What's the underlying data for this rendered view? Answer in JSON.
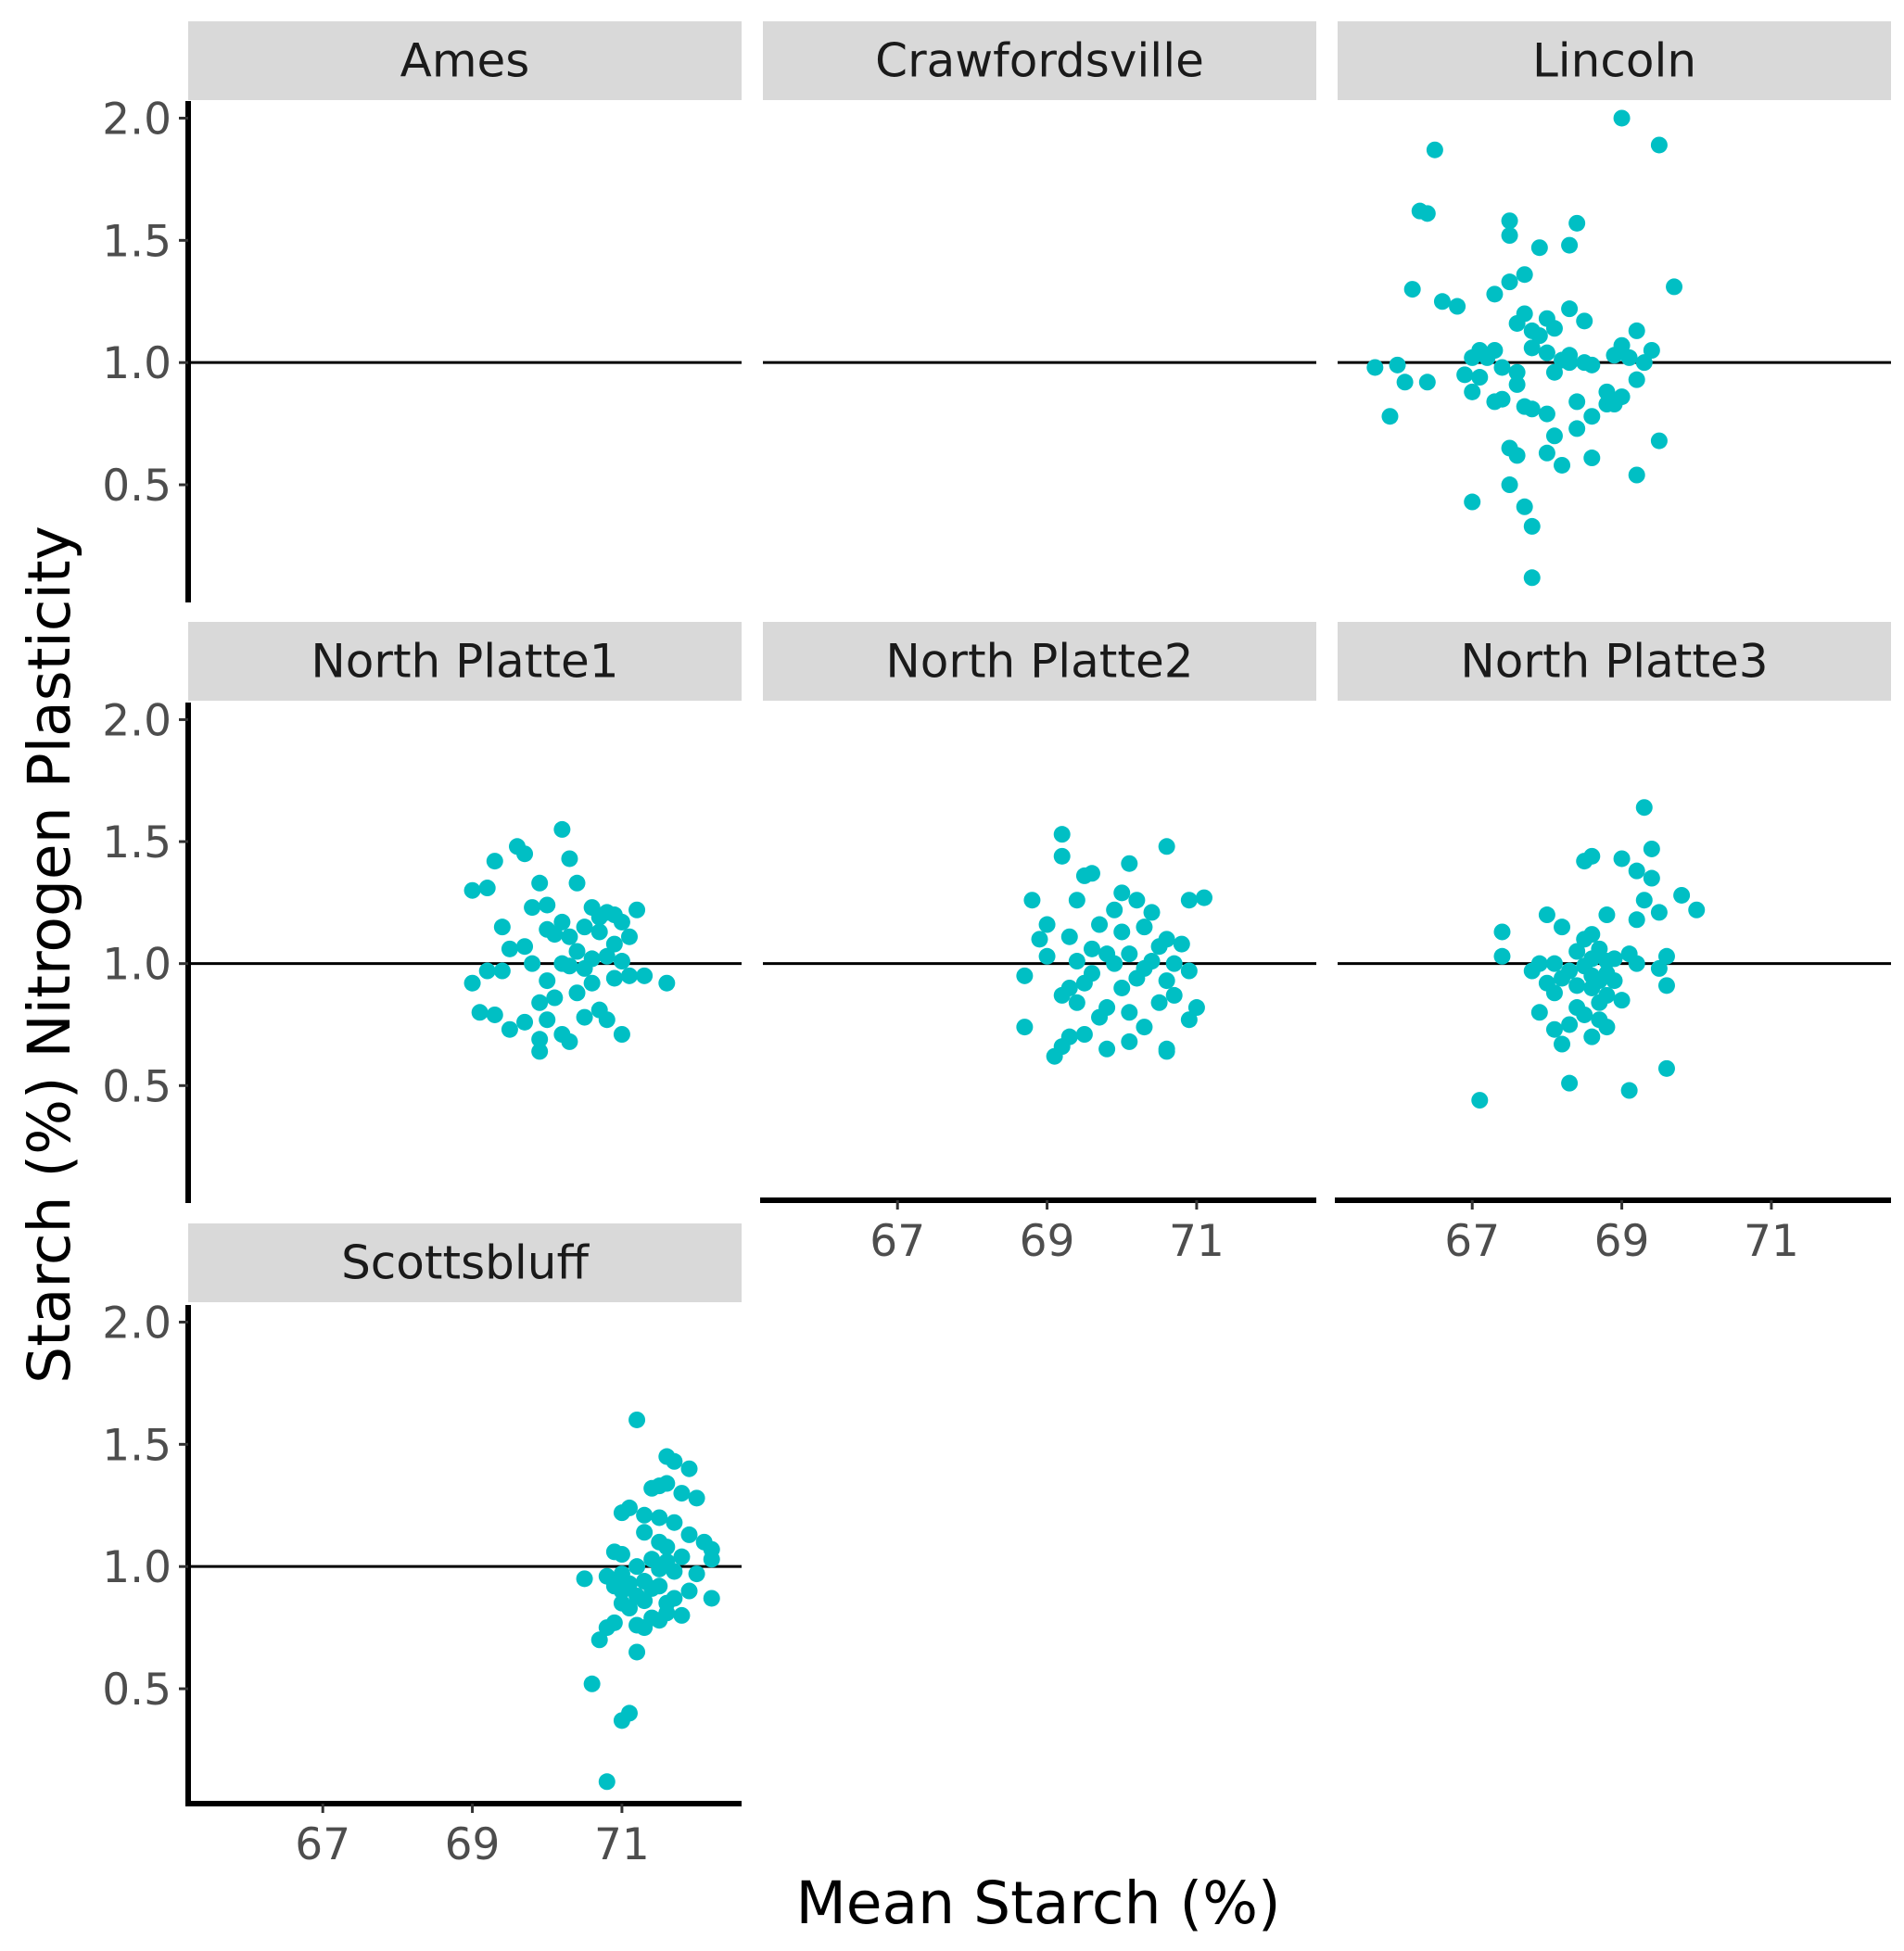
{
  "chart_data": {
    "type": "scatter",
    "title": "",
    "xlabel": "Mean Starch (%)",
    "ylabel": "Starch (%) Nitrogen Plasticity",
    "xlim": [
      65.2,
      72.6
    ],
    "ylim": [
      0.03,
      2.07
    ],
    "x_ticks": [
      67,
      69,
      71
    ],
    "y_ticks": [
      0.5,
      1.0,
      1.5,
      2.0
    ],
    "y_tick_labels": [
      "0.5",
      "1.0",
      "1.5",
      "2.0"
    ],
    "reference_line_y": 1.0,
    "point_color": "#00BFC4",
    "strip_color": "#D9D9D9",
    "grid": false,
    "legend": "none",
    "panels": [
      {
        "name": "Ames",
        "x": [],
        "y": []
      },
      {
        "name": "Crawfordsville",
        "x": [],
        "y": []
      },
      {
        "name": "Lincoln",
        "x": [
          69.0,
          69.5,
          66.5,
          66.3,
          66.4,
          67.5,
          68.4,
          67.5,
          68.3,
          67.9,
          67.7,
          66.2,
          69.7,
          67.3,
          66.6,
          66.8,
          67.5,
          67.7,
          67.6,
          68.3,
          68.0,
          67.8,
          68.5,
          67.9,
          68.1,
          69.2,
          69.0,
          67.3,
          68.0,
          67.1,
          67.2,
          67.8,
          68.3,
          68.5,
          68.2,
          68.9,
          69.4,
          69.1,
          66.0,
          67.0,
          67.4,
          68.3,
          67.6,
          66.9,
          68.6,
          69.3,
          65.7,
          66.1,
          67.1,
          67.6,
          68.1,
          69.2,
          68.8,
          69.0,
          66.4,
          68.4,
          67.0,
          67.4,
          67.7,
          67.3,
          68.8,
          68.9,
          67.8,
          68.6,
          68.0,
          65.9,
          68.4,
          67.5,
          68.1,
          68.0,
          69.5,
          67.6,
          68.6,
          68.2,
          67.5,
          69.2,
          67.0,
          67.7,
          67.8
        ],
        "y": [
          2.0,
          1.89,
          1.87,
          1.62,
          1.61,
          1.58,
          1.57,
          1.52,
          1.48,
          1.47,
          1.36,
          1.3,
          1.31,
          1.28,
          1.25,
          1.23,
          1.33,
          1.2,
          1.16,
          1.22,
          1.18,
          1.13,
          1.17,
          1.11,
          1.14,
          1.13,
          1.07,
          1.05,
          1.04,
          1.05,
          1.02,
          1.06,
          1.03,
          1.0,
          1.01,
          1.03,
          1.05,
          1.02,
          0.99,
          1.02,
          0.98,
          1.0,
          0.96,
          0.95,
          0.99,
          1.0,
          0.98,
          0.92,
          0.94,
          0.91,
          0.96,
          0.93,
          0.88,
          0.86,
          0.92,
          0.84,
          0.88,
          0.85,
          0.82,
          0.84,
          0.83,
          0.83,
          0.81,
          0.78,
          0.79,
          0.78,
          0.73,
          0.65,
          0.7,
          0.63,
          0.68,
          0.62,
          0.61,
          0.58,
          0.5,
          0.54,
          0.43,
          0.41,
          0.33
        ],
        "y_extra": [
          0.12
        ]
      },
      {
        "name": "North Platte1",
        "x": [
          70.2,
          69.6,
          70.3,
          69.3,
          69.7,
          69.0,
          69.2,
          69.9,
          70.4,
          70.8,
          70.6,
          71.2,
          70.9,
          70.0,
          69.4,
          69.8,
          70.2,
          70.5,
          70.7,
          71.0,
          70.3,
          69.5,
          70.1,
          70.7,
          70.9,
          71.1,
          70.4,
          70.0,
          69.7,
          70.6,
          71.3,
          69.2,
          70.2,
          69.0,
          70.8,
          71.0,
          70.5,
          69.4,
          70.3,
          69.8,
          71.1,
          70.9,
          70.0,
          70.6,
          71.6,
          70.4,
          70.1,
          69.9,
          70.7,
          70.8,
          69.1,
          69.3,
          70.0,
          69.5,
          70.5,
          70.2,
          69.7,
          69.9,
          70.3,
          71.0,
          69.9
        ],
        "y": [
          1.55,
          1.48,
          1.43,
          1.42,
          1.45,
          1.3,
          1.31,
          1.33,
          1.33,
          1.21,
          1.23,
          1.22,
          1.2,
          1.24,
          1.15,
          1.23,
          1.17,
          1.15,
          1.19,
          1.17,
          1.11,
          1.06,
          1.12,
          1.13,
          1.08,
          1.11,
          1.05,
          1.14,
          1.07,
          1.02,
          0.95,
          0.97,
          1.0,
          0.92,
          1.03,
          1.01,
          0.98,
          0.97,
          0.99,
          1.0,
          0.95,
          0.94,
          0.93,
          0.92,
          0.92,
          0.88,
          0.86,
          0.84,
          0.81,
          0.77,
          0.8,
          0.79,
          0.77,
          0.73,
          0.78,
          0.71,
          0.76,
          0.69,
          0.68,
          0.71,
          0.64
        ]
      },
      {
        "name": "North Platte2",
        "x": [
          69.2,
          70.6,
          69.2,
          69.6,
          69.5,
          70.1,
          68.8,
          69.4,
          70.0,
          71.1,
          70.2,
          70.9,
          70.4,
          69.9,
          69.7,
          69.0,
          68.9,
          70.3,
          70.0,
          69.3,
          70.6,
          70.8,
          69.6,
          70.5,
          69.8,
          70.1,
          69.0,
          70.4,
          70.7,
          69.4,
          69.9,
          68.7,
          70.3,
          69.6,
          70.9,
          70.2,
          69.5,
          70.6,
          69.3,
          70.7,
          70.0,
          69.2,
          71.0,
          70.5,
          69.8,
          69.4,
          70.1,
          70.9,
          69.7,
          70.3,
          68.7,
          70.6,
          69.5,
          69.3,
          70.1,
          69.8,
          70.6,
          69.2,
          69.1
        ],
        "y": [
          1.53,
          1.48,
          1.44,
          1.37,
          1.36,
          1.41,
          1.26,
          1.26,
          1.29,
          1.27,
          1.26,
          1.26,
          1.21,
          1.22,
          1.16,
          1.16,
          1.1,
          1.15,
          1.13,
          1.11,
          1.1,
          1.08,
          1.06,
          1.07,
          1.04,
          1.04,
          1.03,
          1.01,
          1.0,
          1.01,
          1.0,
          0.95,
          0.98,
          0.96,
          0.97,
          0.94,
          0.92,
          0.93,
          0.9,
          0.87,
          0.9,
          0.87,
          0.82,
          0.84,
          0.82,
          0.84,
          0.8,
          0.77,
          0.78,
          0.74,
          0.74,
          0.65,
          0.71,
          0.7,
          0.68,
          0.65,
          0.64,
          0.66,
          0.62
        ]
      },
      {
        "name": "North Platte3",
        "x": [
          69.3,
          68.6,
          69.0,
          69.4,
          69.2,
          69.8,
          68.5,
          69.4,
          70.0,
          68.0,
          69.3,
          68.8,
          69.5,
          69.2,
          67.4,
          68.6,
          68.5,
          67.4,
          68.2,
          69.6,
          68.7,
          68.4,
          68.9,
          69.1,
          67.9,
          68.6,
          68.1,
          69.2,
          68.8,
          68.5,
          68.3,
          68.6,
          69.5,
          68.2,
          68.8,
          68.7,
          67.8,
          68.9,
          69.6,
          68.4,
          68.6,
          68.1,
          68.0,
          68.8,
          69.0,
          68.7,
          68.4,
          67.9,
          68.5,
          68.7,
          68.3,
          68.8,
          68.1,
          68.6,
          68.2,
          69.6,
          68.3,
          69.1,
          67.1
        ],
        "y": [
          1.64,
          1.44,
          1.43,
          1.47,
          1.38,
          1.28,
          1.42,
          1.35,
          1.22,
          1.2,
          1.26,
          1.2,
          1.21,
          1.18,
          1.13,
          1.12,
          1.1,
          1.03,
          1.15,
          1.03,
          1.06,
          1.05,
          1.02,
          1.04,
          1.0,
          1.02,
          1.0,
          1.0,
          1.01,
          0.99,
          0.97,
          0.95,
          0.98,
          0.94,
          0.96,
          0.93,
          0.97,
          0.93,
          0.91,
          0.91,
          0.9,
          0.88,
          0.92,
          0.87,
          0.85,
          0.84,
          0.82,
          0.8,
          0.79,
          0.77,
          0.75,
          0.74,
          0.73,
          0.7,
          0.67,
          0.57,
          0.51,
          0.48,
          0.44
        ]
      },
      {
        "name": "Scottsbluff",
        "x": [
          71.2,
          71.6,
          71.7,
          71.9,
          71.5,
          71.6,
          72.0,
          71.4,
          71.8,
          71.1,
          71.3,
          72.1,
          71.5,
          71.0,
          71.9,
          71.7,
          72.2,
          71.3,
          71.5,
          71.6,
          70.9,
          72.2,
          71.8,
          71.0,
          71.4,
          71.6,
          71.5,
          71.2,
          70.5,
          70.8,
          71.0,
          71.3,
          71.7,
          71.1,
          71.5,
          72.0,
          71.9,
          71.4,
          71.0,
          71.2,
          71.6,
          72.2,
          70.9,
          71.7,
          71.3,
          71.0,
          71.6,
          71.1,
          71.8,
          71.4,
          71.5,
          71.2,
          70.9,
          70.8,
          71.3,
          70.7,
          71.2,
          70.6,
          71.1,
          71.0,
          70.8
        ],
        "y": [
          1.6,
          1.45,
          1.43,
          1.4,
          1.33,
          1.34,
          1.28,
          1.32,
          1.3,
          1.24,
          1.21,
          1.1,
          1.2,
          1.22,
          1.13,
          1.18,
          1.07,
          1.14,
          1.1,
          1.08,
          1.06,
          1.03,
          1.04,
          1.05,
          1.03,
          1.02,
          0.99,
          1.0,
          0.95,
          0.96,
          0.97,
          0.94,
          0.98,
          0.93,
          0.92,
          0.97,
          0.9,
          0.91,
          0.9,
          0.88,
          0.85,
          0.87,
          0.92,
          0.87,
          0.86,
          0.85,
          0.81,
          0.83,
          0.8,
          0.79,
          0.78,
          0.76,
          0.77,
          0.75,
          0.75,
          0.7,
          0.65,
          0.52,
          0.4,
          0.37,
          0.12
        ]
      }
    ]
  }
}
